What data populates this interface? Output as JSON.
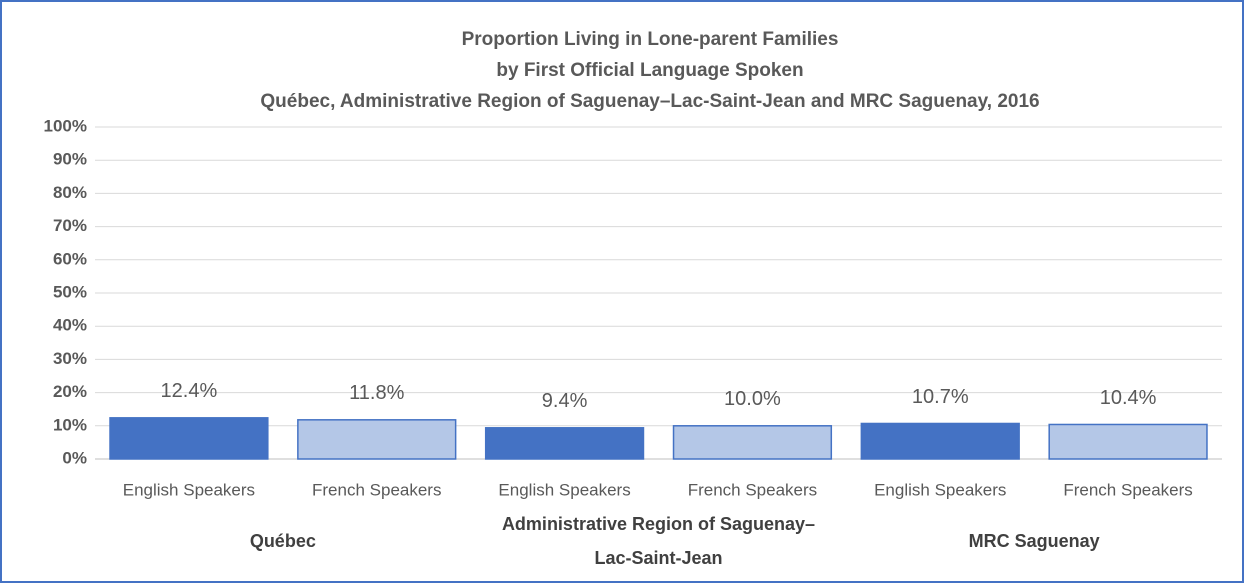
{
  "chart_data": {
    "type": "bar",
    "title": [
      "Proportion Living in Lone-parent Families",
      "by First Official Language Spoken",
      "Québec, Administrative Region of Saguenay–Lac-Saint-Jean and MRC Saguenay, 2016"
    ],
    "categories": [
      "English Speakers",
      "French Speakers",
      "English Speakers",
      "French Speakers",
      "English Speakers",
      "French Speakers"
    ],
    "groups": [
      "Québec",
      "Administrative Region of Saguenay–Lac-Saint-Jean",
      "MRC Saguenay"
    ],
    "values": [
      12.4,
      11.8,
      9.4,
      10.0,
      10.7,
      10.4
    ],
    "value_labels": [
      "12.4%",
      "11.8%",
      "9.4%",
      "10.0%",
      "10.7%",
      "10.4%"
    ],
    "colors": [
      "#4472c4",
      "#b4c7e7",
      "#4472c4",
      "#b4c7e7",
      "#4472c4",
      "#b4c7e7"
    ],
    "ylim": [
      0,
      100
    ],
    "yticks": [
      {
        "value": 0,
        "label": "0%"
      },
      {
        "value": 10,
        "label": "10%"
      },
      {
        "value": 20,
        "label": "20%"
      },
      {
        "value": 30,
        "label": "30%"
      },
      {
        "value": 40,
        "label": "40%"
      },
      {
        "value": 50,
        "label": "50%"
      },
      {
        "value": 60,
        "label": "60%"
      },
      {
        "value": 70,
        "label": "70%"
      },
      {
        "value": 80,
        "label": "80%"
      },
      {
        "value": 90,
        "label": "90%"
      },
      {
        "value": 100,
        "label": "100%"
      }
    ],
    "grid": true
  }
}
